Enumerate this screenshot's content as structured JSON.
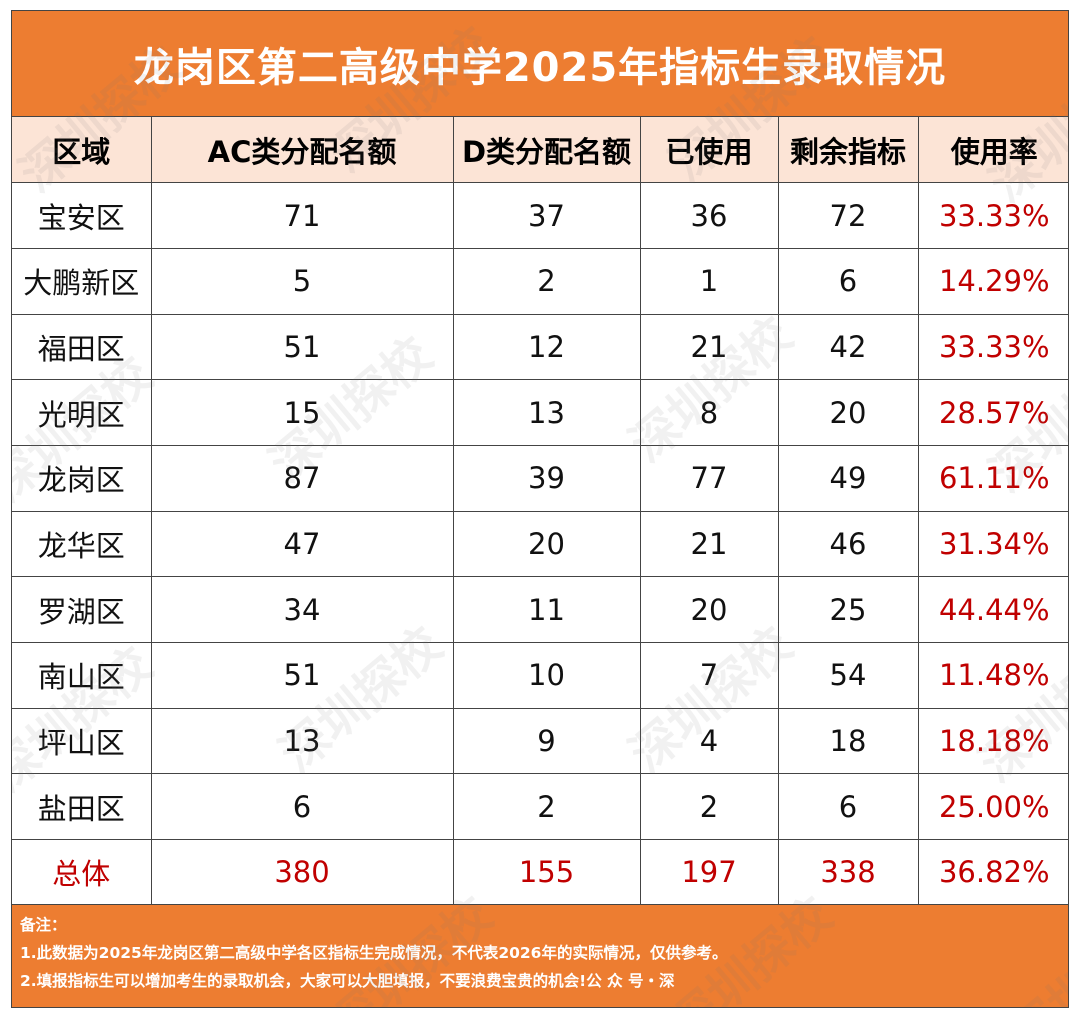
{
  "title": "龙岗区第二高级中学2025年指标生录取情况",
  "table": {
    "headers": [
      "区域",
      "AC类分配名额",
      "D类分配名额",
      "已使用",
      "剩余指标",
      "使用率"
    ],
    "rows": [
      [
        "宝安区",
        "71",
        "37",
        "36",
        "72",
        "33.33%"
      ],
      [
        "大鹏新区",
        "5",
        "2",
        "1",
        "6",
        "14.29%"
      ],
      [
        "福田区",
        "51",
        "12",
        "21",
        "42",
        "33.33%"
      ],
      [
        "光明区",
        "15",
        "13",
        "8",
        "20",
        "28.57%"
      ],
      [
        "龙岗区",
        "87",
        "39",
        "77",
        "49",
        "61.11%"
      ],
      [
        "龙华区",
        "47",
        "20",
        "21",
        "46",
        "31.34%"
      ],
      [
        "罗湖区",
        "34",
        "11",
        "20",
        "25",
        "44.44%"
      ],
      [
        "南山区",
        "51",
        "10",
        "7",
        "54",
        "11.48%"
      ],
      [
        "坪山区",
        "13",
        "9",
        "4",
        "18",
        "18.18%"
      ],
      [
        "盐田区",
        "6",
        "2",
        "2",
        "6",
        "25.00%"
      ]
    ],
    "total": [
      "总体",
      "380",
      "155",
      "197",
      "338",
      "36.82%"
    ]
  },
  "notes": {
    "heading": "备注：",
    "line1": "1.此数据为2025年龙岗区第二高级中学各区指标生完成情况，不代表2026年的实际情况，仅供参考。",
    "line2": "2.填报指标生可以增加考生的录取机会，大家可以大胆填报，不要浪费宝贵的机会!公 众 号・深"
  },
  "watermark": "深圳探校",
  "colors": {
    "accent": "#ED7D31",
    "header_bg": "#FCE4D6",
    "highlight": "#C00000"
  }
}
